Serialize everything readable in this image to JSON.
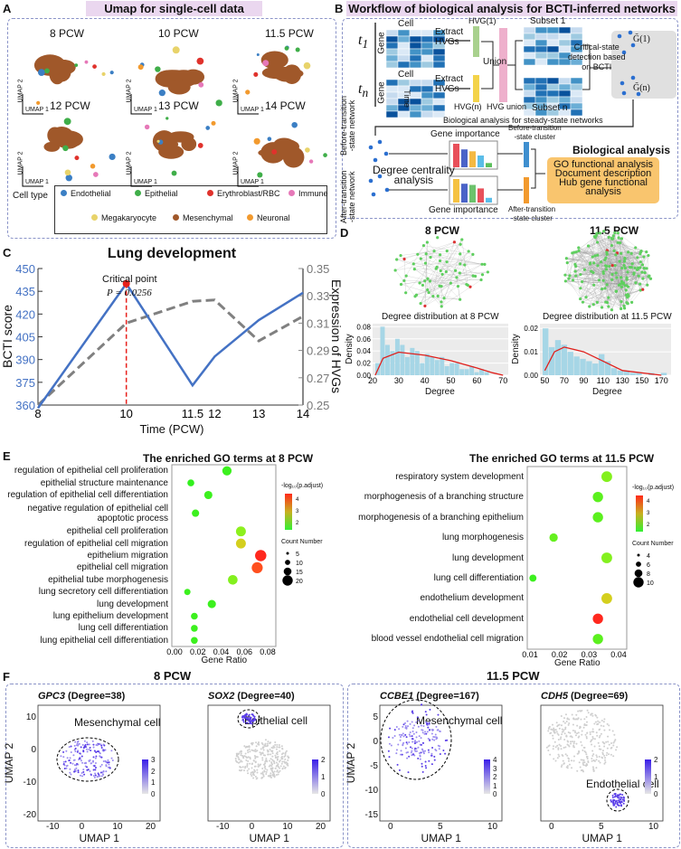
{
  "panel_letters": {
    "a": "A",
    "b": "B",
    "c": "C",
    "d": "D",
    "e": "E",
    "f": "F"
  },
  "panelA": {
    "title": "Umap for single-cell data",
    "timepoints": [
      "8 PCW",
      "10 PCW",
      "11.5 PCW",
      "12 PCW",
      "13 PCW",
      "14 PCW"
    ],
    "xlabel": "UMAP 1",
    "ylabel": "UMAP 2",
    "legend_title": "Cell type",
    "cell_types": [
      {
        "name": "Endothelial",
        "color": "#3b7fc4"
      },
      {
        "name": "Epithelial",
        "color": "#3fae49"
      },
      {
        "name": "Erythroblast/RBC",
        "color": "#e0322c"
      },
      {
        "name": "Immune",
        "color": "#e678b8"
      },
      {
        "name": "Megakaryocyte",
        "color": "#e8d36a"
      },
      {
        "name": "Mesenchymal",
        "color": "#a0582a"
      },
      {
        "name": "Neuronal",
        "color": "#f29a2e"
      }
    ]
  },
  "panelB": {
    "title": "Workflow of biological analysis for BCTI-inferred networks",
    "t1": "t",
    "t1_sub": "1",
    "tn": "t",
    "tn_sub": "n",
    "time": "Time",
    "cell": "Cell",
    "gene": "Gene",
    "extract": "Extract",
    "hvgs": "HVGs",
    "hvg1": "HVG(1)",
    "hvgn": "HVG(n)",
    "union": "Union",
    "hvg_union": "HVG union",
    "subset1": "Subset 1",
    "subsetn": "Subset n",
    "critical": [
      "Critical-state",
      "detection based",
      "on BCTI"
    ],
    "g1": "G̃(1)",
    "gn": "G̃(n)",
    "steady": "Biological analysis for steady-state networks",
    "before_net": [
      "Before-transition",
      "-state network"
    ],
    "after_net": [
      "After-transition",
      "-state network"
    ],
    "gene_importance": "Gene importance",
    "degree": [
      "Degree centrality",
      "analysis"
    ],
    "before_cluster": [
      "Before-transition",
      "-state cluster"
    ],
    "after_cluster": [
      "After-transition",
      "-state cluster"
    ],
    "bio_title": "Biological analysis",
    "bio_items": [
      "GO functional analysis",
      "Document description",
      "Hub gene functional",
      "analysis"
    ],
    "bars_top": [
      "#e8505a",
      "#4a63c8",
      "#f5b942",
      "#5bbde8",
      "#5cc05c"
    ],
    "bars_top_vals": [
      1,
      0.76,
      0.68,
      0.5,
      0.18
    ],
    "bars_bot": [
      "#f5c242",
      "#4a63c8",
      "#6cc36c",
      "#e8505a",
      "#5bbde8"
    ],
    "bars_bot_vals": [
      1,
      0.8,
      0.75,
      0.6,
      0.2
    ]
  },
  "chart_data": [
    {
      "type": "line",
      "title": "Lung development",
      "xlabel": "Time (PCW)",
      "ylabel": "BCTI score",
      "y2label": "Expression of HVGs",
      "categories": [
        "8",
        "10",
        "11.5",
        "12",
        "13",
        "14"
      ],
      "ylim": [
        360,
        450
      ],
      "yticks": [
        "360",
        "375",
        "390",
        "405",
        "420",
        "435",
        "450"
      ],
      "y2lim": [
        0.25,
        0.35
      ],
      "y2ticks": [
        "0.25",
        "0.27",
        "0.29",
        "0.31",
        "0.33",
        "0.35"
      ],
      "series": [
        {
          "name": "BCTI score",
          "values": [
            358,
            440,
            373,
            392,
            416,
            434
          ],
          "color": "#4472c4"
        },
        {
          "name": "Expression of HVGs",
          "values": [
            0.25,
            0.31,
            0.326,
            0.327,
            0.297,
            0.315
          ],
          "color": "#808080"
        }
      ],
      "annotation": {
        "label": "Critical point",
        "p": "P = 0.0256",
        "x": "10"
      }
    },
    {
      "type": "bar",
      "title": "Degree distribution at 8 PCW",
      "xlabel": "Degree",
      "ylabel": "Density",
      "xticks": [
        "20",
        "30",
        "40",
        "50",
        "60",
        "70"
      ],
      "yticks": [
        "0.00",
        "0.02",
        "0.04",
        "0.06",
        "0.08"
      ],
      "xlim": [
        20,
        72
      ],
      "ylim": [
        0,
        0.085
      ],
      "values": [
        0.02,
        0.08,
        0.05,
        0.04,
        0.06,
        0.05,
        0.03,
        0.045,
        0.04,
        0.02,
        0.035,
        0.03,
        0.025,
        0.03,
        0.015,
        0.02,
        0.02,
        0.01,
        0.01,
        0.015,
        0.005,
        0.01,
        0.005,
        0.0,
        0.0,
        0.0
      ],
      "density": [
        [
          21,
          0.0
        ],
        [
          24,
          0.028
        ],
        [
          30,
          0.038
        ],
        [
          40,
          0.033
        ],
        [
          50,
          0.024
        ],
        [
          60,
          0.012
        ],
        [
          66,
          0.004
        ],
        [
          70,
          0.0
        ]
      ]
    },
    {
      "type": "bar",
      "title": "Degree distribution at 11.5 PCW",
      "xlabel": "Degree",
      "ylabel": "Density",
      "xticks": [
        "50",
        "70",
        "90",
        "110",
        "130",
        "150",
        "170"
      ],
      "yticks": [
        "0.00",
        "0.01",
        "0.02"
      ],
      "xlim": [
        45,
        180
      ],
      "ylim": [
        0,
        0.022
      ],
      "values": [
        0.02,
        0.012,
        0.015,
        0.013,
        0.01,
        0.008,
        0.007,
        0.006,
        0.005,
        0.009,
        0.006,
        0.003,
        0.002,
        0.002,
        0.001,
        0.001,
        0.0,
        0.001,
        0.0,
        0.001
      ],
      "density": [
        [
          50,
          0.002
        ],
        [
          60,
          0.01
        ],
        [
          70,
          0.012
        ],
        [
          90,
          0.01
        ],
        [
          110,
          0.006
        ],
        [
          130,
          0.002
        ],
        [
          170,
          0.0
        ]
      ]
    },
    {
      "type": "scatter",
      "title": "The enriched GO terms at 8 PCW",
      "xlabel": "Gene Ratio",
      "xlim": [
        0,
        0.08
      ],
      "xticks": [
        "0.00",
        "0.02",
        "0.04",
        "0.06",
        "0.08"
      ],
      "color_legend": "-log₁₀(p.adjust)",
      "color_ticks": [
        "2",
        "3",
        "4"
      ],
      "size_legend": "Count Number",
      "size_ticks": [
        "5",
        "10",
        "15",
        "20"
      ],
      "terms": [
        {
          "term": "regulation of epithelial cell proliferation",
          "ratio": 0.045,
          "count": 10,
          "logp": 1.5
        },
        {
          "term": "epithelial structure maintenance",
          "ratio": 0.014,
          "count": 4,
          "logp": 1.4
        },
        {
          "term": "regulation of epithelial cell differentiation",
          "ratio": 0.029,
          "count": 7,
          "logp": 1.5
        },
        {
          "term": "negative regulation of epithelial cell apoptotic process",
          "ratio": 0.018,
          "count": 5,
          "logp": 1.5
        },
        {
          "term": "epithelial cell proliferation",
          "ratio": 0.057,
          "count": 12,
          "logp": 2.3
        },
        {
          "term": "regulation of epithelial cell migration",
          "ratio": 0.057,
          "count": 12,
          "logp": 3.0
        },
        {
          "term": "epithelium migration",
          "ratio": 0.074,
          "count": 17,
          "logp": 4.7
        },
        {
          "term": "epithelial cell migration",
          "ratio": 0.071,
          "count": 16,
          "logp": 4.3
        },
        {
          "term": "epithelial tube morphogenesis",
          "ratio": 0.05,
          "count": 11,
          "logp": 2.2
        },
        {
          "term": "lung secretory cell differentiation",
          "ratio": 0.011,
          "count": 3,
          "logp": 1.5
        },
        {
          "term": "lung development",
          "ratio": 0.032,
          "count": 7,
          "logp": 1.5
        },
        {
          "term": "lung epithelium development",
          "ratio": 0.017,
          "count": 4,
          "logp": 1.5
        },
        {
          "term": "lung cell differentiation",
          "ratio": 0.017,
          "count": 4,
          "logp": 1.5
        },
        {
          "term": "lung epithelial cell differentiation",
          "ratio": 0.017,
          "count": 4,
          "logp": 1.5
        }
      ]
    },
    {
      "type": "scatter",
      "title": "The enriched GO terms at 11.5 PCW",
      "xlabel": "Gene Ratio",
      "xlim": [
        0.01,
        0.04
      ],
      "xticks": [
        "0.01",
        "0.02",
        "0.03",
        "0.04"
      ],
      "color_legend": "-log₁₀(p.adjust)",
      "color_ticks": [
        "2",
        "3",
        "4"
      ],
      "size_legend": "Count Number",
      "size_ticks": [
        "4",
        "6",
        "8",
        "10"
      ],
      "terms": [
        {
          "term": "respiratory system development",
          "ratio": 0.036,
          "count": 10,
          "logp": 2.2
        },
        {
          "term": "morphogenesis of a branching structure",
          "ratio": 0.033,
          "count": 9,
          "logp": 1.8
        },
        {
          "term": "morphogenesis of a branching epithelium",
          "ratio": 0.033,
          "count": 9,
          "logp": 1.8
        },
        {
          "term": "lung morphogenesis",
          "ratio": 0.018,
          "count": 5,
          "logp": 1.9
        },
        {
          "term": "lung development",
          "ratio": 0.036,
          "count": 10,
          "logp": 2.2
        },
        {
          "term": "lung cell differentiation",
          "ratio": 0.011,
          "count": 3,
          "logp": 1.5
        },
        {
          "term": "endothelium development",
          "ratio": 0.036,
          "count": 10,
          "logp": 3.0
        },
        {
          "term": "endothelial cell development",
          "ratio": 0.033,
          "count": 9,
          "logp": 4.7
        },
        {
          "term": "blood vessel endothelial cell migration",
          "ratio": 0.033,
          "count": 9,
          "logp": 1.8
        }
      ]
    }
  ],
  "panelD": {
    "titles": [
      "8 PCW",
      "11.5 PCW"
    ]
  },
  "panelF": {
    "left_title": "8 PCW",
    "right_title": "11.5 PCW",
    "xlabel": "UMAP 1",
    "ylabel": "UMAP 2",
    "plots": [
      {
        "gene": "GPC3",
        "degree": " (Degree=38)",
        "cell": "Mesenchymal cell",
        "xticks": [
          "-10",
          "0",
          "10",
          "20"
        ],
        "yticks": [
          "10",
          "0",
          "-10",
          "-20"
        ],
        "scale": [
          "3",
          "2",
          "1",
          "0"
        ]
      },
      {
        "gene": "SOX2",
        "degree": " (Degree=40)",
        "cell": "Epithelial cell",
        "xticks": [
          "-10",
          "0",
          "10",
          "20"
        ],
        "yticks": [],
        "scale": [
          "2",
          "1",
          "0"
        ]
      },
      {
        "gene": "CCBE1",
        "degree": " (Degree=167)",
        "cell": "Mesenchymal cell",
        "xticks": [
          "0",
          "5",
          "10"
        ],
        "yticks": [
          "5",
          "0",
          "-5",
          "-10",
          "-15"
        ],
        "scale": [
          "4",
          "3",
          "2",
          "1",
          "0"
        ]
      },
      {
        "gene": "CDH5",
        "degree": " (Degree=69)",
        "cell": "Endothelial cell",
        "xticks": [
          "0",
          "5",
          "10"
        ],
        "yticks": [],
        "scale": [
          "2",
          "1",
          "0"
        ]
      }
    ]
  }
}
